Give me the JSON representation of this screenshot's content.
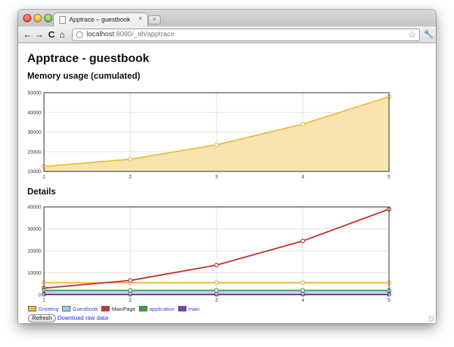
{
  "browser": {
    "tab_title": "Apptrace – guestbook",
    "tab_close": "×",
    "new_tab": "+",
    "url_host": "localhost",
    "url_rest": ":8080/_ah/apptrace",
    "back": "←",
    "forward": "→",
    "reload": "C",
    "home": "⌂",
    "star": "☆",
    "wrench": "🔧"
  },
  "page": {
    "title": "Apptrace - guestbook",
    "memory_heading": "Memory usage (cumulated)",
    "details_heading": "Details",
    "refresh_label": "Refresh",
    "download_label": "Download raw data"
  },
  "colors": {
    "memory_fill": "#f7e4ae",
    "memory_line": "#e8c14a",
    "grid": "#e3e3e3",
    "axis": "#222222"
  },
  "chart_data": [
    {
      "type": "area",
      "title": "Memory usage (cumulated)",
      "x": [
        1,
        2,
        3,
        4,
        5
      ],
      "series": [
        {
          "name": "",
          "values": [
            12500,
            16200,
            23500,
            34000,
            48000
          ],
          "color": "#e8c14a"
        }
      ],
      "ylim": [
        10000,
        50000
      ],
      "yticks": [
        10000,
        20000,
        30000,
        40000,
        50000
      ],
      "xticks": [
        1,
        2,
        3,
        4,
        5
      ],
      "grid": true
    },
    {
      "type": "line",
      "title": "Details",
      "x": [
        1,
        2,
        3,
        4,
        5
      ],
      "series": [
        {
          "name": "Greeting",
          "values": [
            5500,
            5500,
            5500,
            5500,
            5500
          ],
          "color": "#f0b72e"
        },
        {
          "name": "Guestbook",
          "values": [
            1200,
            1200,
            1200,
            1200,
            1200
          ],
          "color": "#9ec9ef"
        },
        {
          "name": "MainPage",
          "values": [
            3000,
            6500,
            13500,
            24500,
            39000
          ],
          "color": "#c8333a"
        },
        {
          "name": "application",
          "values": [
            2000,
            2000,
            2000,
            2000,
            2000
          ],
          "color": "#3aa345"
        },
        {
          "name": "main",
          "values": [
            200,
            200,
            200,
            200,
            200
          ],
          "color": "#8833cc"
        }
      ],
      "ylim": [
        0,
        40000
      ],
      "yticks": [
        0,
        10000,
        20000,
        30000,
        40000
      ],
      "xticks": [
        1,
        2,
        3,
        4,
        5
      ],
      "grid": true,
      "legend": "bottom-left"
    }
  ]
}
